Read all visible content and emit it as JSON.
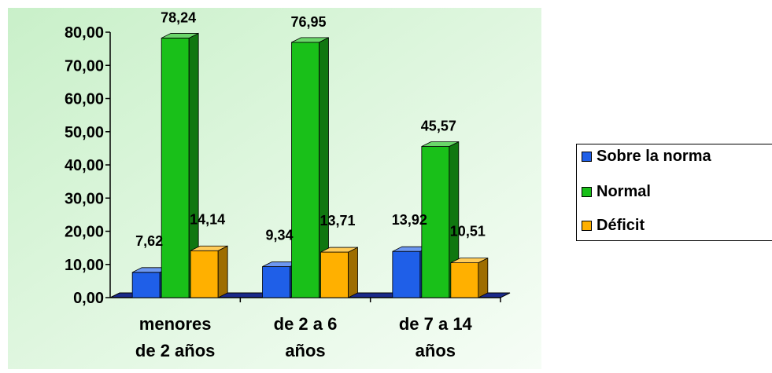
{
  "chart_data": {
    "type": "bar",
    "categories": [
      "menores de 2 años",
      "de 2 a 6 años",
      "de 7 a 14 años"
    ],
    "category_lines": [
      [
        "menores",
        "de 2 años"
      ],
      [
        "de 2 a 6",
        "años"
      ],
      [
        "de 7 a 14",
        "años"
      ]
    ],
    "series": [
      {
        "name": "Sobre la norma",
        "values": [
          7.62,
          9.34,
          13.92
        ],
        "color": "#1f5fe8",
        "value_labels": [
          "7,62",
          "9,34",
          "13,92"
        ]
      },
      {
        "name": "Normal",
        "values": [
          78.24,
          76.95,
          45.57
        ],
        "color": "#19c019",
        "value_labels": [
          "78,24",
          "76,95",
          "45,57"
        ]
      },
      {
        "name": "Déficit",
        "values": [
          14.14,
          13.71,
          10.51
        ],
        "color": "#ffb000",
        "value_labels": [
          "14,14",
          "13,71",
          "10,51"
        ]
      }
    ],
    "ylim": [
      0,
      80
    ],
    "yticks": [
      "0,00",
      "10,00",
      "20,00",
      "30,00",
      "40,00",
      "50,00",
      "60,00",
      "70,00",
      "80,00"
    ],
    "ytick_values": [
      0,
      10,
      20,
      30,
      40,
      50,
      60,
      70,
      80
    ],
    "legend_position": "right",
    "grid": false,
    "title": "",
    "xlabel": "",
    "ylabel": "",
    "plot_background": "#e4f7e4"
  },
  "legend": {
    "items": [
      "Sobre la norma",
      "Normal",
      "Déficit"
    ]
  }
}
